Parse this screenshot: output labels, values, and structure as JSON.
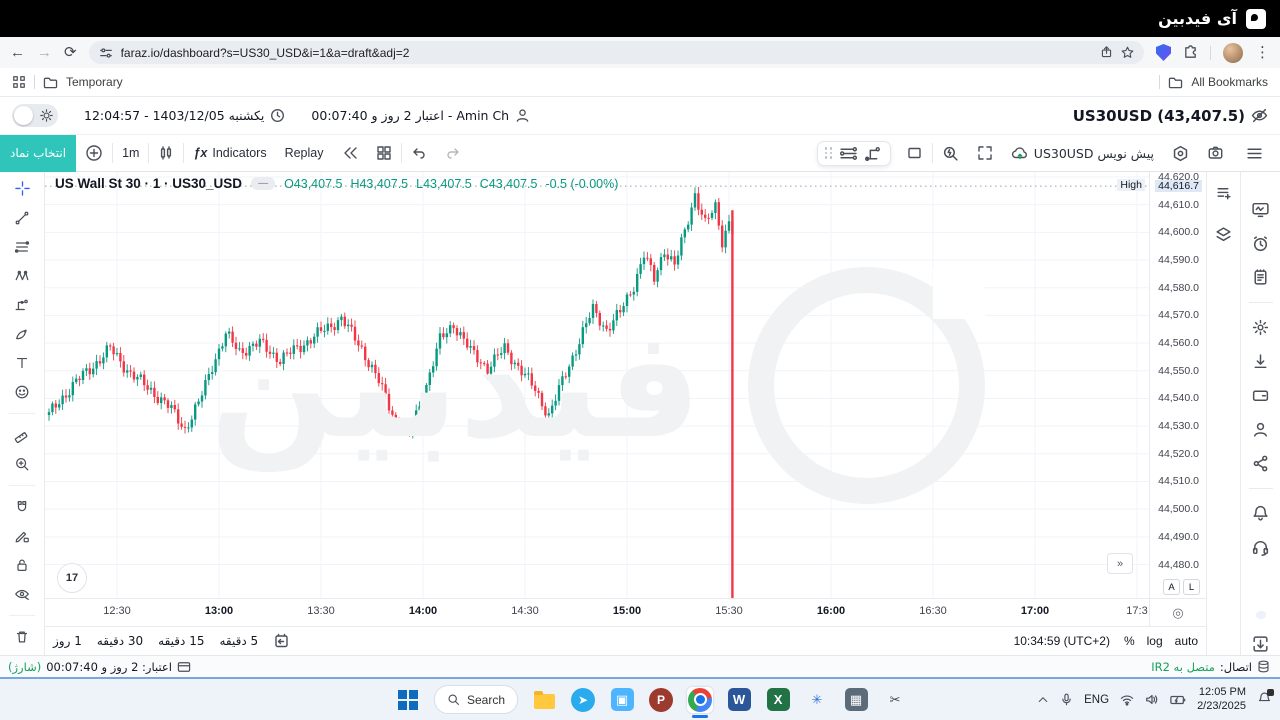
{
  "brand": {
    "tab_title": "آی فیدبین",
    "watermark_text": "فیدبین"
  },
  "browser": {
    "url": "faraz.io/dashboard?s=US30_USD&i=1&a=draft&adj=2",
    "bookmark_temporary": "Temporary",
    "bookmark_all": "All Bookmarks",
    "menu_glyph": "⋮"
  },
  "header": {
    "datetime": "یکشنبه 1403/12/05 - 12:04:57",
    "account": "Amin Ch - اعتبار 2 روز و 00:07:40",
    "symbol_price": "US30USD (43,407.5)"
  },
  "toolbar": {
    "symbol_button": "انتخاب نماد",
    "interval": "1m",
    "indicators_fx": "ƒx",
    "indicators": "Indicators",
    "replay": "Replay",
    "draft": "پیش نویس US30USD"
  },
  "legend": {
    "title": "US Wall St 30 · 1 · US30_USD",
    "chip": "—",
    "open": "O43,407.5",
    "high": "H43,407.5",
    "low": "L43,407.5",
    "close": "C43,407.5",
    "change": "-0.5 (-0.00%)"
  },
  "chart_data": {
    "type": "candlestick",
    "title": "US Wall St 30 · 1 · US30_USD",
    "symbol": "US30_USD",
    "interval": "1m",
    "up_color": "#089981",
    "down_color": "#f23645",
    "grid": true,
    "price_axis": {
      "min": 44480,
      "max": 44620,
      "tick_step": 10,
      "ticks": [
        "44,620.0",
        "44,610.0",
        "44,600.0",
        "44,590.0",
        "44,580.0",
        "44,570.0",
        "44,560.0",
        "44,550.0",
        "44,540.0",
        "44,530.0",
        "44,520.0",
        "44,510.0",
        "44,500.0",
        "44,490.0",
        "44,480.0"
      ]
    },
    "session_high": {
      "label": "High",
      "price": 44616.7,
      "display": "44,616.7"
    },
    "time_axis": {
      "start_minute_offset": 0,
      "ticks": [
        {
          "label": "12:30",
          "minute": 20,
          "bold": false
        },
        {
          "label": "13:00",
          "minute": 50,
          "bold": true
        },
        {
          "label": "13:30",
          "minute": 80,
          "bold": false
        },
        {
          "label": "14:00",
          "minute": 110,
          "bold": true
        },
        {
          "label": "14:30",
          "minute": 140,
          "bold": false
        },
        {
          "label": "15:00",
          "minute": 170,
          "bold": true
        },
        {
          "label": "15:30",
          "minute": 200,
          "bold": false
        },
        {
          "label": "16:00",
          "minute": 230,
          "bold": true
        },
        {
          "label": "16:30",
          "minute": 260,
          "bold": false
        },
        {
          "label": "17:00",
          "minute": 290,
          "bold": true
        },
        {
          "label": "17:3",
          "minute": 320,
          "bold": false
        }
      ]
    },
    "price_path_anchors": [
      [
        0,
        44534
      ],
      [
        3,
        44539
      ],
      [
        8,
        44546
      ],
      [
        14,
        44553
      ],
      [
        18,
        44558
      ],
      [
        24,
        44549
      ],
      [
        30,
        44543
      ],
      [
        36,
        44536
      ],
      [
        40,
        44529
      ],
      [
        44,
        44538
      ],
      [
        48,
        44552
      ],
      [
        52,
        44563
      ],
      [
        56,
        44557
      ],
      [
        62,
        44560
      ],
      [
        68,
        44554
      ],
      [
        74,
        44559
      ],
      [
        80,
        44564
      ],
      [
        86,
        44569
      ],
      [
        92,
        44558
      ],
      [
        97,
        44546
      ],
      [
        102,
        44532
      ],
      [
        106,
        44527
      ],
      [
        110,
        44541
      ],
      [
        115,
        44561
      ],
      [
        119,
        44567
      ],
      [
        124,
        44557
      ],
      [
        129,
        44551
      ],
      [
        134,
        44558
      ],
      [
        139,
        44550
      ],
      [
        143,
        44543
      ],
      [
        147,
        44534
      ],
      [
        152,
        44549
      ],
      [
        157,
        44564
      ],
      [
        160,
        44572
      ],
      [
        164,
        44565
      ],
      [
        168,
        44571
      ],
      [
        172,
        44581
      ],
      [
        175,
        44592
      ],
      [
        178,
        44583
      ],
      [
        181,
        44594
      ],
      [
        184,
        44588
      ],
      [
        187,
        44600
      ],
      [
        190,
        44614
      ],
      [
        193,
        44603
      ],
      [
        196,
        44609
      ],
      [
        198,
        44597
      ],
      [
        200,
        44604
      ],
      [
        201,
        44601
      ]
    ],
    "last_candle_drop": {
      "minute": 201,
      "from_price": 44608,
      "close_offscale": 43407.5
    },
    "ohlc_readout": {
      "o": 43407.5,
      "h": 43407.5,
      "l": 43407.5,
      "c": 43407.5,
      "change": -0.5,
      "change_pct": "-0.00%"
    }
  },
  "axis_extras": {
    "a": "A",
    "l": "L",
    "collapse": "»",
    "corner_gear": "◎"
  },
  "bottom": {
    "timeframes": [
      "5 دقیقه",
      "15 دقیقه",
      "30 دقیقه",
      "1 روز"
    ],
    "clock": "10:34:59 (UTC+2)",
    "percent": "%",
    "log": "log",
    "auto": "auto"
  },
  "status": {
    "credit": "اعتبار: 2 روز و 00:07:40",
    "credit_badge": "(شارژ)",
    "connection": "اتصال:",
    "connection_state": "متصل به IR2"
  },
  "taskbar": {
    "search": "Search",
    "lang": "ENG",
    "time": "12:05 PM",
    "date": "2/23/2025",
    "apps": [
      {
        "name": "file-explorer",
        "type": "folder"
      },
      {
        "name": "telegram",
        "type": "circle",
        "color": "#2aabee",
        "glyph": "➤"
      },
      {
        "name": "video-app",
        "type": "sq",
        "color": "#4db5ff",
        "glyph": "▣"
      },
      {
        "name": "psiphon",
        "type": "circle",
        "color": "#9c3a2e",
        "glyph": "P"
      },
      {
        "name": "chrome",
        "type": "chrome",
        "active": true
      },
      {
        "name": "word",
        "type": "sq",
        "color": "#2b579a",
        "glyph": "W"
      },
      {
        "name": "excel",
        "type": "sq",
        "color": "#217346",
        "glyph": "X"
      },
      {
        "name": "asterisk-app",
        "type": "sq",
        "color": "transparent",
        "glyph": "✳",
        "fg": "#2f6fd6"
      },
      {
        "name": "calculator",
        "type": "sq",
        "color": "#5b6b7a",
        "glyph": "▦"
      },
      {
        "name": "snipping-tool",
        "type": "sq",
        "color": "transparent",
        "glyph": "✂",
        "fg": "#444444"
      }
    ]
  }
}
